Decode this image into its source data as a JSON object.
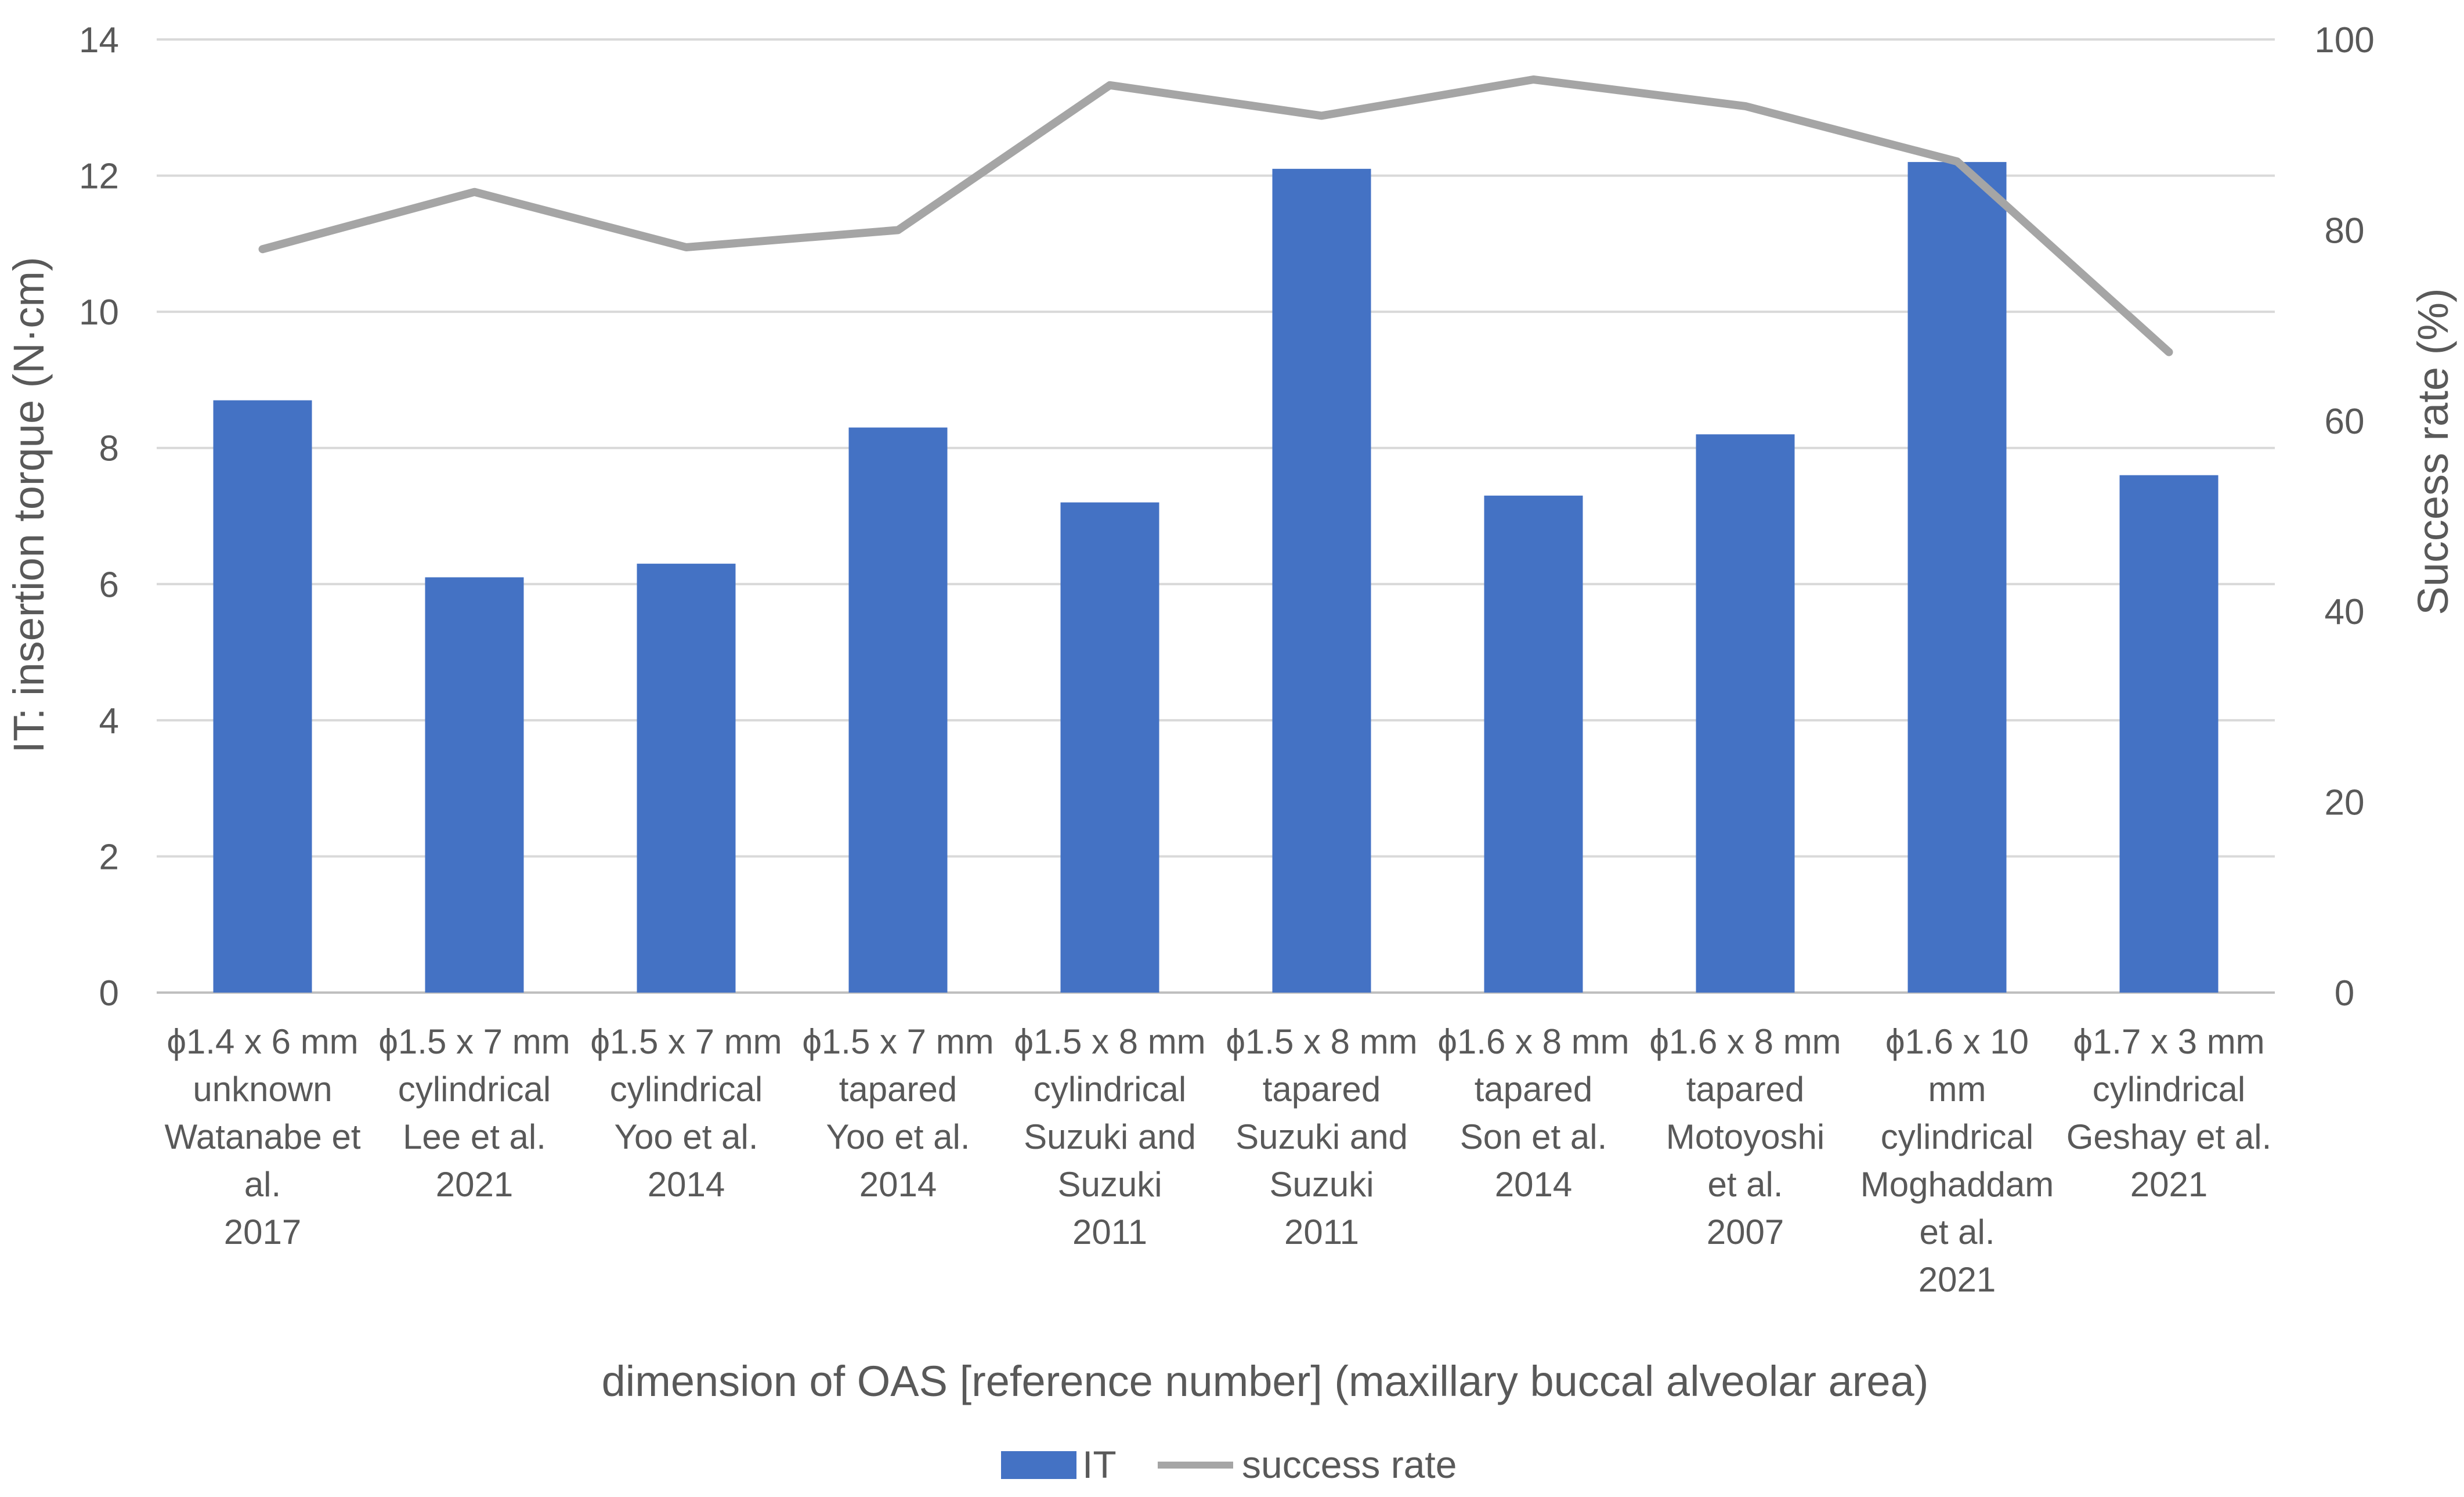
{
  "chart_data": {
    "type": "bar+line",
    "title": "",
    "categories": [
      [
        "ϕ1.4 x 6 mm",
        "unknown",
        "Watanabe et",
        "al.",
        "2017"
      ],
      [
        "ϕ1.5 x 7 mm",
        "cylindrical",
        "Lee et al.",
        "2021"
      ],
      [
        "ϕ1.5 x 7 mm",
        "cylindrical",
        "Yoo et al.",
        "2014"
      ],
      [
        "ϕ1.5 x 7 mm",
        "tapared",
        "Yoo et al.",
        "2014"
      ],
      [
        "ϕ1.5 x 8 mm",
        "cylindrical",
        "Suzuki and",
        "Suzuki",
        "2011"
      ],
      [
        "ϕ1.5 x 8 mm",
        "tapared",
        "Suzuki and",
        "Suzuki",
        "2011"
      ],
      [
        "ϕ1.6 x 8 mm",
        "tapared",
        "Son et al.",
        "2014"
      ],
      [
        "ϕ1.6 x 8 mm",
        "tapared",
        "Motoyoshi",
        "et al.",
        "2007"
      ],
      [
        "ϕ1.6 x 10",
        "mm",
        "cylindrical",
        "Moghaddam",
        "et al.",
        "2021"
      ],
      [
        "ϕ1.7 x 3 mm",
        "cylindrical",
        "Geshay et al.",
        "2021"
      ]
    ],
    "series": [
      {
        "name": "IT",
        "type": "bar",
        "axis": "left",
        "color": "#4472C4",
        "values": [
          8.7,
          6.1,
          6.3,
          8.3,
          7.2,
          12.1,
          7.3,
          8.2,
          12.2,
          7.6
        ]
      },
      {
        "name": "success rate",
        "type": "line",
        "axis": "right",
        "color": "#A5A5A5",
        "values": [
          78,
          84,
          78.2,
          80,
          95.2,
          92,
          95.8,
          93,
          87.2,
          67.2
        ]
      }
    ],
    "xlabel": "dimension of OAS [reference number] (maxillary buccal alveolar area)",
    "ylabel": "IT: insertion torque (N·cm)",
    "y2label": "Success rate (%)",
    "ylim": [
      0,
      14
    ],
    "y2lim": [
      0,
      100
    ],
    "yticks": [
      "0",
      "2",
      "4",
      "6",
      "8",
      "10",
      "12",
      "14"
    ],
    "y2ticks": [
      "0",
      "20",
      "40",
      "60",
      "80",
      "100"
    ],
    "grid": true,
    "legend_position": "bottom"
  }
}
